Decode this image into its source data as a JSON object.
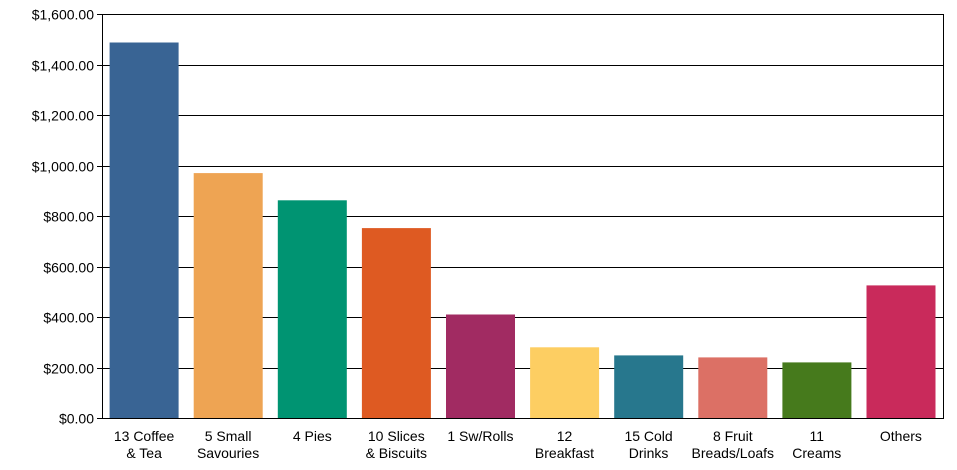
{
  "chart_data": {
    "type": "bar",
    "title": "",
    "xlabel": "",
    "ylabel": "",
    "ylim": [
      0,
      1600
    ],
    "y_ticks": [
      0,
      200,
      400,
      600,
      800,
      1000,
      1200,
      1400,
      1600
    ],
    "y_tick_labels": [
      "$0.00",
      "$200.00",
      "$400.00",
      "$600.00",
      "$800.00",
      "$1,000.00",
      "$1,200.00",
      "$1,400.00",
      "$1,600.00"
    ],
    "grid": true,
    "legend": "none",
    "categories": [
      [
        "13 Coffee",
        "& Tea"
      ],
      [
        "5 Small",
        "Savouries"
      ],
      [
        "4 Pies"
      ],
      [
        "10 Slices",
        "& Biscuits"
      ],
      [
        "1 Sw/Rolls"
      ],
      [
        "12",
        "Breakfast"
      ],
      [
        "15 Cold",
        "Drinks"
      ],
      [
        "8 Fruit",
        "Breads/Loafs"
      ],
      [
        "11",
        "Creams"
      ],
      [
        "Others"
      ]
    ],
    "values": [
      1487,
      970,
      862,
      752,
      410,
      280,
      248,
      240,
      220,
      525
    ],
    "colors": [
      "#396494",
      "#EEA453",
      "#009472",
      "#DE5A22",
      "#A12B62",
      "#FDCE62",
      "#27778D",
      "#DC7065",
      "#467A1C",
      "#C92A5B"
    ]
  }
}
